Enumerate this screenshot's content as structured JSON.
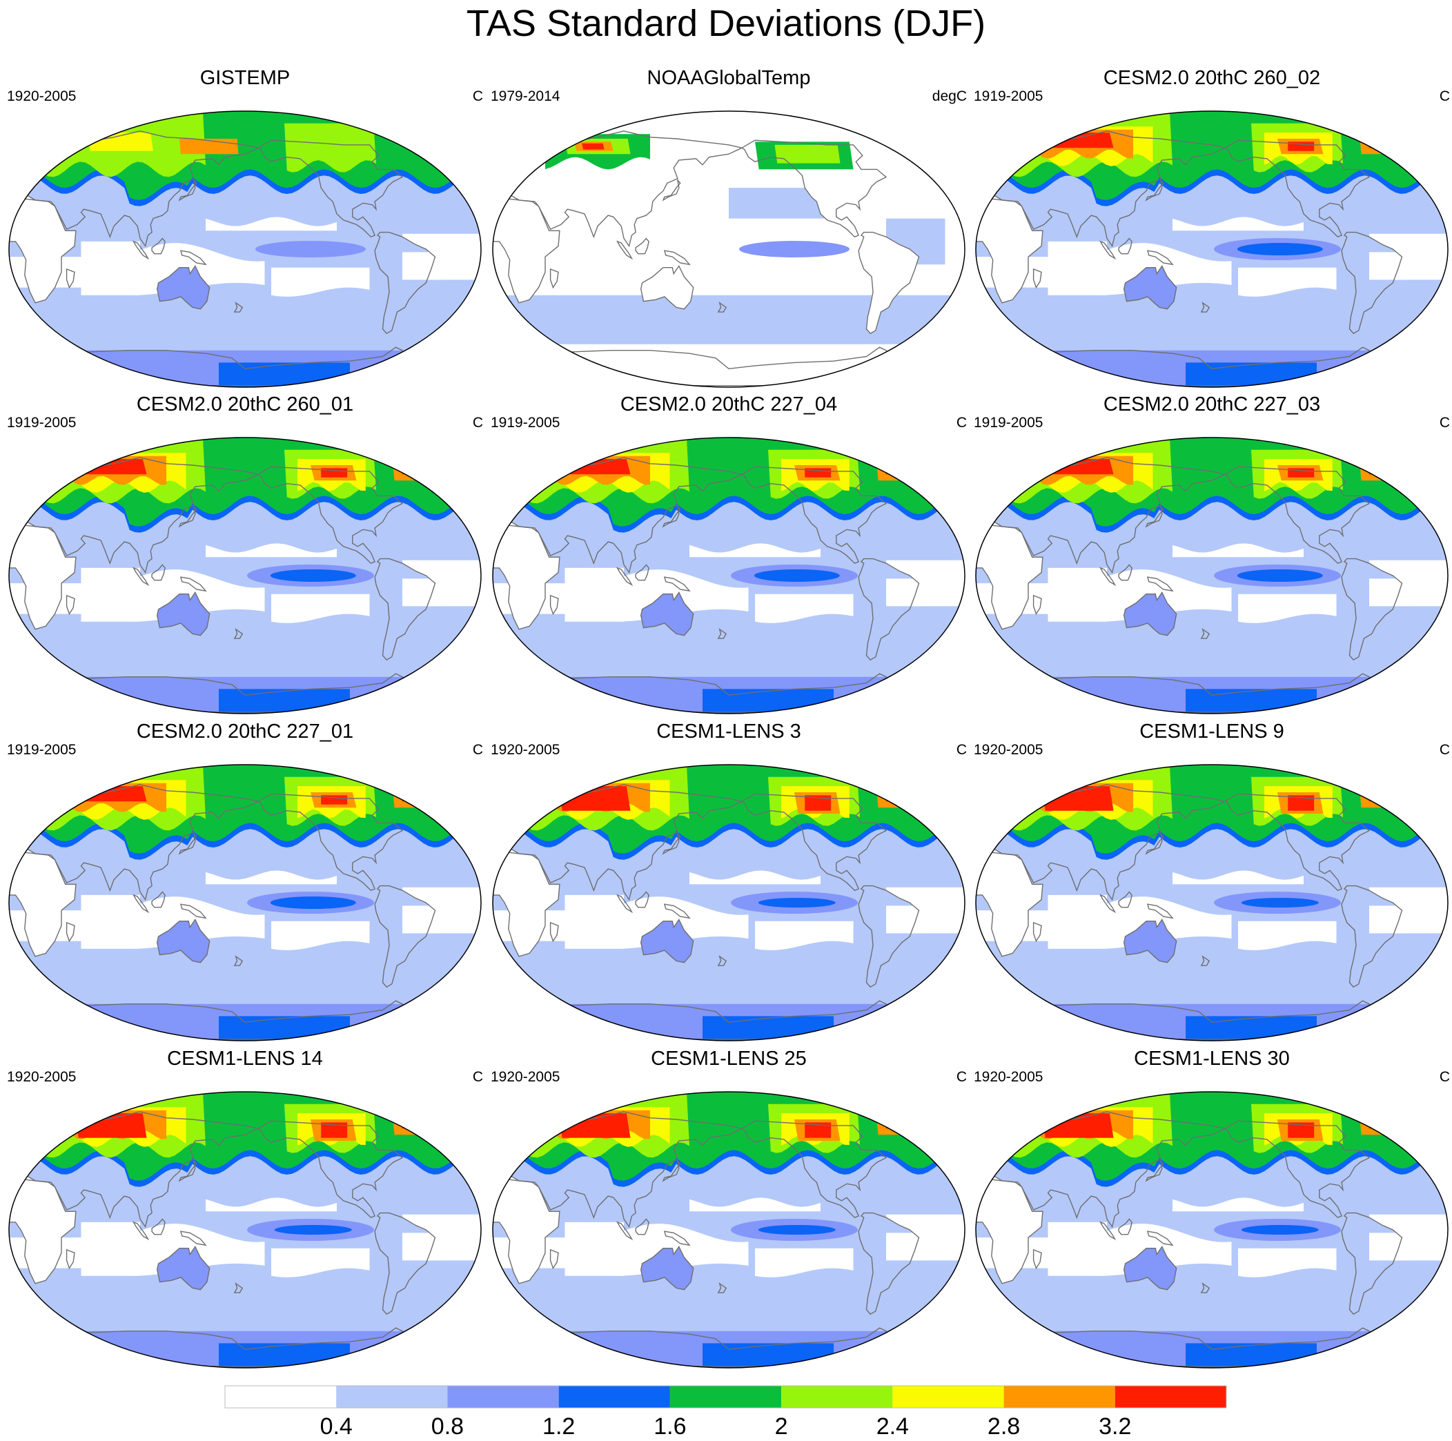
{
  "figure": {
    "title": "TAS Standard Deviations (DJF)"
  },
  "colors": {
    "white": "#ffffff",
    "lightblue": "#b4c8fa",
    "midblue": "#8396fa",
    "blue": "#0a64f5",
    "green": "#0abe3c",
    "lime": "#96f50a",
    "yellow": "#fafa00",
    "orange": "#ff9600",
    "red": "#ff1e00",
    "coast": "#6e6e6e"
  },
  "panels": [
    {
      "title": "GISTEMP",
      "period": "1920-2005",
      "unit": "C",
      "variant": "obs"
    },
    {
      "title": "NOAAGlobalTemp",
      "period": "1979-2014",
      "unit": "degC",
      "variant": "noaa"
    },
    {
      "title": "CESM2.0 20thC 260_02",
      "period": "1919-2005",
      "unit": "C",
      "variant": "cesm2"
    },
    {
      "title": "CESM2.0 20thC 260_01",
      "period": "1919-2005",
      "unit": "C",
      "variant": "cesm2"
    },
    {
      "title": "CESM2.0 20thC 227_04",
      "period": "1919-2005",
      "unit": "C",
      "variant": "cesm2"
    },
    {
      "title": "CESM2.0 20thC 227_03",
      "period": "1919-2005",
      "unit": "C",
      "variant": "cesm2"
    },
    {
      "title": "CESM2.0 20thC 227_01",
      "period": "1919-2005",
      "unit": "C",
      "variant": "cesm2"
    },
    {
      "title": "CESM1-LENS 3",
      "period": "1920-2005",
      "unit": "C",
      "variant": "lens"
    },
    {
      "title": "CESM1-LENS 9",
      "period": "1920-2005",
      "unit": "C",
      "variant": "lens"
    },
    {
      "title": "CESM1-LENS 14",
      "period": "1920-2005",
      "unit": "C",
      "variant": "lens"
    },
    {
      "title": "CESM1-LENS 25",
      "period": "1920-2005",
      "unit": "C",
      "variant": "lens"
    },
    {
      "title": "CESM1-LENS 30",
      "period": "1920-2005",
      "unit": "C",
      "variant": "lens"
    }
  ],
  "colorbar": {
    "labels": [
      "0.4",
      "0.8",
      "1.2",
      "1.6",
      "2",
      "2.4",
      "2.8",
      "3.2"
    ],
    "colors": [
      "#ffffff",
      "#b4c8fa",
      "#8396fa",
      "#0a64f5",
      "#0abe3c",
      "#96f50a",
      "#fafa00",
      "#ff9600",
      "#ff1e00"
    ]
  }
}
